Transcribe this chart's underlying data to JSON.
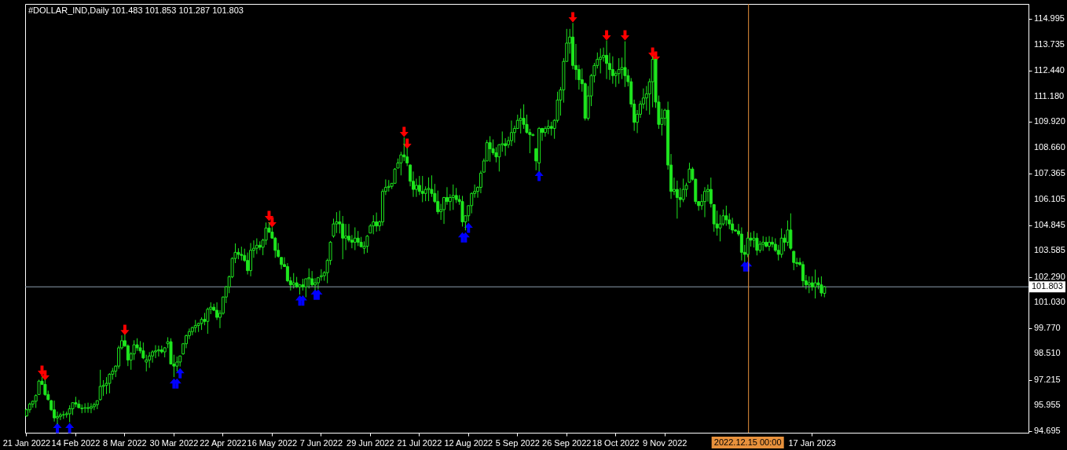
{
  "chart_data": {
    "type": "candlestick",
    "title": "#DOLLAR_IND,Daily  101.483 101.853 101.287 101.803",
    "color": "#1ee61e",
    "categories": [
      "21 Jan 2022",
      null,
      null,
      null,
      null,
      null,
      null,
      null,
      null,
      null,
      null,
      null,
      null,
      null,
      null,
      null,
      "14 Feb 2022",
      null,
      null,
      null,
      null,
      null,
      null,
      null,
      null,
      null,
      null,
      null,
      null,
      null,
      null,
      null,
      "8 Mar 2022",
      null,
      null,
      null,
      null,
      null,
      null,
      null,
      null,
      null,
      null,
      null,
      null,
      null,
      null,
      null,
      "30 Mar 2022",
      null,
      null,
      null,
      null,
      null,
      null,
      null,
      null,
      null,
      null,
      null,
      null,
      null,
      null,
      null,
      "22 Apr 2022",
      null,
      null,
      null,
      null,
      null,
      null,
      null,
      null,
      null,
      null,
      null,
      null,
      null,
      null,
      null,
      "16 May 2022",
      null,
      null,
      null,
      null,
      null,
      null,
      null,
      null,
      null,
      null,
      null,
      null,
      null,
      null,
      null,
      "7 Jun 2022",
      null,
      null,
      null,
      null,
      null,
      null,
      null,
      null,
      null,
      null,
      null,
      null,
      null,
      null,
      null,
      "29 Jun 2022",
      null,
      null,
      null,
      null,
      null,
      null,
      null,
      null,
      null,
      null,
      null,
      null,
      null,
      null,
      null,
      "21 Jul 2022",
      null,
      null,
      null,
      null,
      null,
      null,
      null,
      null,
      null,
      null,
      null,
      null,
      null,
      null,
      null,
      "12 Aug 2022",
      null,
      null,
      null,
      null,
      null,
      null,
      null,
      null,
      null,
      null,
      null,
      null,
      null,
      null,
      null,
      "5 Sep 2022",
      null,
      null,
      null,
      null,
      null,
      null,
      null,
      null,
      null,
      null,
      null,
      null,
      null,
      null,
      null,
      "26 Sep 2022",
      null,
      null,
      null,
      null,
      null,
      null,
      null,
      null,
      null,
      null,
      null,
      null,
      null,
      null,
      null,
      "18 Oct 2022",
      null,
      null,
      null,
      null,
      null,
      null,
      null,
      null,
      null,
      null,
      null,
      null,
      null,
      null,
      null,
      "9 Nov 2022",
      null,
      null,
      null,
      null,
      null,
      null,
      null,
      null,
      null,
      null,
      null,
      null,
      null,
      null,
      null,
      null,
      null,
      null,
      null,
      null,
      null,
      null,
      null,
      null,
      null,
      null,
      "2022.12.15 00:00",
      null,
      null,
      null,
      null,
      null,
      null,
      null,
      null,
      null,
      null,
      null,
      null,
      null,
      null,
      null,
      null,
      null,
      null,
      null,
      null,
      "17 Jan 2023",
      null,
      null,
      null,
      null,
      null,
      null,
      null,
      null,
      null,
      null,
      null,
      null,
      null,
      null,
      null,
      null,
      null,
      null,
      null,
      null,
      null,
      null,
      null,
      null,
      null,
      null,
      null,
      null,
      null,
      null,
      null,
      null,
      null,
      null,
      null,
      null,
      null,
      null,
      null,
      null,
      null,
      null,
      null,
      null,
      null,
      null,
      null,
      null,
      null,
      null,
      null,
      null,
      null,
      null,
      null,
      null,
      null,
      null,
      null,
      null,
      null,
      null,
      null,
      null,
      null,
      null,
      null,
      null,
      null,
      null
    ],
    "ohlc": [
      [
        95.45,
        95.81,
        95.4,
        95.75
      ],
      [
        95.75,
        96.1,
        95.6,
        96.03
      ],
      [
        96.03,
        96.2,
        95.85,
        96.17
      ],
      [
        96.17,
        96.51,
        95.84,
        96.45
      ],
      [
        96.5,
        97.23,
        96.48,
        97.16
      ],
      [
        97.16,
        97.36,
        96.97,
        97.0
      ],
      [
        97.0,
        97.23,
        96.43,
        96.5
      ],
      [
        96.5,
        96.69,
        96.2,
        96.25
      ],
      [
        96.2,
        96.24,
        95.69,
        95.75
      ],
      [
        95.75,
        96.2,
        95.17,
        95.35
      ],
      [
        95.35,
        95.66,
        95.04,
        95.42
      ],
      [
        95.42,
        95.6,
        95.24,
        95.5
      ],
      [
        95.5,
        95.69,
        95.3,
        95.51
      ],
      [
        95.51,
        95.66,
        95.36,
        95.55
      ],
      [
        95.55,
        95.97,
        95.14,
        95.8
      ],
      [
        95.8,
        96.1,
        95.49,
        96.1
      ],
      [
        96.1,
        96.39,
        95.88,
        96.03
      ],
      [
        96.03,
        96.23,
        95.84,
        95.85
      ],
      [
        95.8,
        96.01,
        95.58,
        95.83
      ],
      [
        95.83,
        96.07,
        95.6,
        95.85
      ],
      [
        95.85,
        96.1,
        95.6,
        95.82
      ],
      [
        95.82,
        96.07,
        95.58,
        95.9
      ],
      [
        95.9,
        96.1,
        95.73,
        96.0
      ],
      [
        96.0,
        96.2,
        95.78,
        96.2
      ],
      [
        96.25,
        97.72,
        96.2,
        96.9
      ],
      [
        96.9,
        97.21,
        96.43,
        96.95
      ],
      [
        96.95,
        97.36,
        96.52,
        97.05
      ],
      [
        97.05,
        97.55,
        96.56,
        97.5
      ],
      [
        97.5,
        97.81,
        97.23,
        97.65
      ],
      [
        97.65,
        97.94,
        97.36,
        97.9
      ],
      [
        97.9,
        98.91,
        97.77,
        98.8
      ],
      [
        98.8,
        99.42,
        98.71,
        99.15
      ],
      [
        99.15,
        99.46,
        98.84,
        98.9
      ],
      [
        98.9,
        98.97,
        97.9,
        98.2
      ],
      [
        98.2,
        98.59,
        97.72,
        98.5
      ],
      [
        98.5,
        99.17,
        98.2,
        98.95
      ],
      [
        98.95,
        99.27,
        98.65,
        98.8
      ],
      [
        98.8,
        99.13,
        98.52,
        98.65
      ],
      [
        98.65,
        99.06,
        98.24,
        98.3
      ],
      [
        98.1,
        98.46,
        97.64,
        98.2
      ],
      [
        98.2,
        98.59,
        97.81,
        98.4
      ],
      [
        98.4,
        98.68,
        98.07,
        98.6
      ],
      [
        98.6,
        98.93,
        98.29,
        98.65
      ],
      [
        98.65,
        98.91,
        98.37,
        98.7
      ],
      [
        98.7,
        98.91,
        98.52,
        98.6
      ],
      [
        98.6,
        98.84,
        98.33,
        98.8
      ],
      [
        99.0,
        99.32,
        98.78,
        99.1
      ],
      [
        99.1,
        99.27,
        98.0,
        98.0
      ],
      [
        98.0,
        98.46,
        97.36,
        97.9
      ],
      [
        97.9,
        98.37,
        97.64,
        98.1
      ],
      [
        98.1,
        98.42,
        97.88,
        98.4
      ],
      [
        98.5,
        99.04,
        98.46,
        99.0
      ],
      [
        99.0,
        99.45,
        98.78,
        99.4
      ],
      [
        99.4,
        99.75,
        99.23,
        99.6
      ],
      [
        99.6,
        99.84,
        99.42,
        99.8
      ],
      [
        99.8,
        100.17,
        99.55,
        99.9
      ],
      [
        99.9,
        100.04,
        99.58,
        100.0
      ],
      [
        100.0,
        100.3,
        99.68,
        100.2
      ],
      [
        100.2,
        100.52,
        99.91,
        100.1
      ],
      [
        100.1,
        100.78,
        99.49,
        100.7
      ],
      [
        100.7,
        101.04,
        100.46,
        100.8
      ],
      [
        100.8,
        100.97,
        100.61,
        100.65
      ],
      [
        100.65,
        101.04,
        100.17,
        100.3
      ],
      [
        100.3,
        100.65,
        99.77,
        100.5
      ],
      [
        100.5,
        101.33,
        100.43,
        101.3
      ],
      [
        101.3,
        101.85,
        101.0,
        101.8
      ],
      [
        101.8,
        102.36,
        101.49,
        102.3
      ],
      [
        102.3,
        103.26,
        102.23,
        103.2
      ],
      [
        103.2,
        103.94,
        102.97,
        103.5
      ],
      [
        103.5,
        103.7,
        103.16,
        103.4
      ],
      [
        103.4,
        103.78,
        103.1,
        103.35
      ],
      [
        103.35,
        103.68,
        103.03,
        103.1
      ],
      [
        103.1,
        103.49,
        102.41,
        102.6
      ],
      [
        102.6,
        103.96,
        102.32,
        103.6
      ],
      [
        103.6,
        104.09,
        103.23,
        103.7
      ],
      [
        103.7,
        104.19,
        103.42,
        103.85
      ],
      [
        103.85,
        104.04,
        103.61,
        103.75
      ],
      [
        103.75,
        104.17,
        103.36,
        104.1
      ],
      [
        104.1,
        104.97,
        103.87,
        104.7
      ],
      [
        104.7,
        104.97,
        104.45,
        104.5
      ],
      [
        104.5,
        104.74,
        104.17,
        104.2
      ],
      [
        104.2,
        104.26,
        103.23,
        103.6
      ],
      [
        103.6,
        103.96,
        103.23,
        103.3
      ],
      [
        103.25,
        103.26,
        102.67,
        102.9
      ],
      [
        102.9,
        103.26,
        102.78,
        102.8
      ],
      [
        102.8,
        102.97,
        102.03,
        102.1
      ],
      [
        102.1,
        102.29,
        101.62,
        101.9
      ],
      [
        101.9,
        102.48,
        101.72,
        102.0
      ],
      [
        102.0,
        102.29,
        101.75,
        101.8
      ],
      [
        101.8,
        101.94,
        101.42,
        101.9
      ],
      [
        101.9,
        102.2,
        101.62,
        101.8
      ],
      [
        101.8,
        102.2,
        101.29,
        102.2
      ],
      [
        102.2,
        102.71,
        101.72,
        102.25
      ],
      [
        102.2,
        102.58,
        101.81,
        101.9
      ],
      [
        101.9,
        102.23,
        101.64,
        102.0
      ],
      [
        102.0,
        102.29,
        101.68,
        102.25
      ],
      [
        102.3,
        102.67,
        102.1,
        102.35
      ],
      [
        102.35,
        102.58,
        102.1,
        102.5
      ],
      [
        102.5,
        103.19,
        101.98,
        103.1
      ],
      [
        103.1,
        104.06,
        102.88,
        104.0
      ],
      [
        104.3,
        105.16,
        104.22,
        104.9
      ],
      [
        104.9,
        105.48,
        104.45,
        105.0
      ],
      [
        105.0,
        105.55,
        104.43,
        104.9
      ],
      [
        104.9,
        105.29,
        103.16,
        104.2
      ],
      [
        104.2,
        104.9,
        103.61,
        104.3
      ],
      [
        104.3,
        104.9,
        104.0,
        104.1
      ],
      [
        104.1,
        104.35,
        103.7,
        104.0
      ],
      [
        104.0,
        104.73,
        103.61,
        104.2
      ],
      [
        104.2,
        104.55,
        103.81,
        104.0
      ],
      [
        104.0,
        104.26,
        103.74,
        103.78
      ],
      [
        103.7,
        104.04,
        103.42,
        103.8
      ],
      [
        103.8,
        104.35,
        103.48,
        104.3
      ],
      [
        104.45,
        104.9,
        104.45,
        104.8
      ],
      [
        104.8,
        105.33,
        104.39,
        105.0
      ],
      [
        105.0,
        105.46,
        104.52,
        104.8
      ],
      [
        104.8,
        105.07,
        104.55,
        105.0
      ],
      [
        105.0,
        106.62,
        104.81,
        106.5
      ],
      [
        106.5,
        107.09,
        106.32,
        106.7
      ],
      [
        106.7,
        107.06,
        106.49,
        106.75
      ],
      [
        106.75,
        106.9,
        106.62,
        106.9
      ],
      [
        106.9,
        107.65,
        106.9,
        107.6
      ],
      [
        107.65,
        108.12,
        107.65,
        107.9
      ],
      [
        107.9,
        108.45,
        107.29,
        108.3
      ],
      [
        108.3,
        109.16,
        107.99,
        108.2
      ],
      [
        108.2,
        108.64,
        107.74,
        107.9
      ],
      [
        107.8,
        107.83,
        106.75,
        107.0
      ],
      [
        107.0,
        107.48,
        106.23,
        106.6
      ],
      [
        106.6,
        107.13,
        106.23,
        106.8
      ],
      [
        106.8,
        107.26,
        106.32,
        106.5
      ],
      [
        106.5,
        107.26,
        105.97,
        106.4
      ],
      [
        106.4,
        106.75,
        106.02,
        106.6
      ],
      [
        106.6,
        107.19,
        106.02,
        106.65
      ],
      [
        106.6,
        107.29,
        106.23,
        106.4
      ],
      [
        106.4,
        106.87,
        105.93,
        106.0
      ],
      [
        106.0,
        106.54,
        105.38,
        105.5
      ],
      [
        105.5,
        105.89,
        105.1,
        105.6
      ],
      [
        105.6,
        106.23,
        104.9,
        106.2
      ],
      [
        106.2,
        106.71,
        105.84,
        106.0
      ],
      [
        106.0,
        106.36,
        105.55,
        106.2
      ],
      [
        106.2,
        106.84,
        105.59,
        106.3
      ],
      [
        106.3,
        106.67,
        105.93,
        106.1
      ],
      [
        106.1,
        106.32,
        105.84,
        106.0
      ],
      [
        106.0,
        106.28,
        104.77,
        105.0
      ],
      [
        105.0,
        105.33,
        104.58,
        105.3
      ],
      [
        105.3,
        105.81,
        105.03,
        105.8
      ],
      [
        105.8,
        106.45,
        105.42,
        106.4
      ],
      [
        106.4,
        106.84,
        106.19,
        106.5
      ],
      [
        106.5,
        106.75,
        106.19,
        106.7
      ],
      [
        106.7,
        107.52,
        106.41,
        107.4
      ],
      [
        107.45,
        108.12,
        107.42,
        108.0
      ],
      [
        108.0,
        109.03,
        107.99,
        108.9
      ],
      [
        108.9,
        109.22,
        107.96,
        108.6
      ],
      [
        108.6,
        109.06,
        108.29,
        108.4
      ],
      [
        108.4,
        108.68,
        107.93,
        108.2
      ],
      [
        108.2,
        108.83,
        107.48,
        108.8
      ],
      [
        108.8,
        109.45,
        108.45,
        108.85
      ],
      [
        108.85,
        109.12,
        108.25,
        108.75
      ],
      [
        108.8,
        109.2,
        108.64,
        109.0
      ],
      [
        109.0,
        109.99,
        108.73,
        109.4
      ],
      [
        109.4,
        109.74,
        108.9,
        109.6
      ],
      [
        109.6,
        110.28,
        109.58,
        110.0
      ],
      [
        110.0,
        110.57,
        109.35,
        110.1
      ],
      [
        110.1,
        110.79,
        109.58,
        109.8
      ],
      [
        109.8,
        110.28,
        109.35,
        109.4
      ],
      [
        109.4,
        109.58,
        108.38,
        109.3
      ],
      [
        109.25,
        109.35,
        109.22,
        109.3
      ],
      [
        108.6,
        108.64,
        107.54,
        108.0
      ],
      [
        107.9,
        109.67,
        107.48,
        109.6
      ],
      [
        109.6,
        109.63,
        108.99,
        109.4
      ],
      [
        109.4,
        109.71,
        109.19,
        109.6
      ],
      [
        109.6,
        110.02,
        109.32,
        109.7
      ],
      [
        109.7,
        109.93,
        109.25,
        109.6
      ],
      [
        109.6,
        110.06,
        109.09,
        110.0
      ],
      [
        110.0,
        111.41,
        109.89,
        111.0
      ],
      [
        111.0,
        111.64,
        110.23,
        111.5
      ],
      [
        111.5,
        113.06,
        110.87,
        112.9
      ],
      [
        112.9,
        114.5,
        112.89,
        113.8
      ],
      [
        113.8,
        114.5,
        113.28,
        114.1
      ],
      [
        114.1,
        114.79,
        112.51,
        112.7
      ],
      [
        112.7,
        113.76,
        111.99,
        112.5
      ],
      [
        112.5,
        112.73,
        111.51,
        112.0
      ],
      [
        112.0,
        112.55,
        111.41,
        111.8
      ],
      [
        111.8,
        111.86,
        109.99,
        110.1
      ],
      [
        110.1,
        111.69,
        109.99,
        111.2
      ],
      [
        111.2,
        112.29,
        110.7,
        112.2
      ],
      [
        112.2,
        112.83,
        111.86,
        112.7
      ],
      [
        112.7,
        113.34,
        112.55,
        113.0
      ],
      [
        113.0,
        113.54,
        112.31,
        113.1
      ],
      [
        113.1,
        113.58,
        112.89,
        113.2
      ],
      [
        113.2,
        113.93,
        112.03,
        112.8
      ],
      [
        112.8,
        113.32,
        111.99,
        112.5
      ],
      [
        112.5,
        113.15,
        111.8,
        112.2
      ],
      [
        112.2,
        112.42,
        111.64,
        112.3
      ],
      [
        112.3,
        113.06,
        111.8,
        112.5
      ],
      [
        112.5,
        113.09,
        112.03,
        112.6
      ],
      [
        112.6,
        113.89,
        111.64,
        112.2
      ],
      [
        112.2,
        112.51,
        111.67,
        111.9
      ],
      [
        111.9,
        112.08,
        110.64,
        110.8
      ],
      [
        110.8,
        111.02,
        109.48,
        109.9
      ],
      [
        109.9,
        110.51,
        109.37,
        110.3
      ],
      [
        110.3,
        110.96,
        110.12,
        110.8
      ],
      [
        110.8,
        111.57,
        110.57,
        111.1
      ],
      [
        111.1,
        111.69,
        110.48,
        111.3
      ],
      [
        111.3,
        112.06,
        110.28,
        111.9
      ],
      [
        111.9,
        113.15,
        110.64,
        113.0
      ],
      [
        113.0,
        113.02,
        110.61,
        110.9
      ],
      [
        110.9,
        111.22,
        109.58,
        109.8
      ],
      [
        109.8,
        110.57,
        109.25,
        110.1
      ],
      [
        110.1,
        110.57,
        109.74,
        110.5
      ],
      [
        110.5,
        110.92,
        107.57,
        107.8
      ],
      [
        107.8,
        108.34,
        106.13,
        106.5
      ],
      [
        106.5,
        107.18,
        106.32,
        106.6
      ],
      [
        106.6,
        107.03,
        105.16,
        106.2
      ],
      [
        106.2,
        106.67,
        105.71,
        106.1
      ],
      [
        106.1,
        107.13,
        105.97,
        106.6
      ],
      [
        106.6,
        106.93,
        106.23,
        106.8
      ],
      [
        106.95,
        107.91,
        106.93,
        107.6
      ],
      [
        107.6,
        107.7,
        107.03,
        107.1
      ],
      [
        107.1,
        107.13,
        105.87,
        106.0
      ],
      [
        106.0,
        106.02,
        105.55,
        105.8
      ],
      [
        105.8,
        106.36,
        105.59,
        106.0
      ],
      [
        106.0,
        106.71,
        105.23,
        106.5
      ],
      [
        106.5,
        106.84,
        106.0,
        106.6
      ],
      [
        106.6,
        107.18,
        105.71,
        105.9
      ],
      [
        105.85,
        105.87,
        104.51,
        104.9
      ],
      [
        104.9,
        105.55,
        104.32,
        104.7
      ],
      [
        104.7,
        105.35,
        104.04,
        104.9
      ],
      [
        104.9,
        105.61,
        104.81,
        105.3
      ],
      [
        105.3,
        105.8,
        104.81,
        105.1
      ],
      [
        105.1,
        105.42,
        104.64,
        104.9
      ],
      [
        104.9,
        105.2,
        104.43,
        104.6
      ],
      [
        104.6,
        104.64,
        104.51,
        104.55
      ],
      [
        104.55,
        104.9,
        104.3,
        104.4
      ],
      [
        104.4,
        104.73,
        103.1,
        103.5
      ],
      [
        103.5,
        103.87,
        103.03,
        103.4
      ],
      [
        103.4,
        104.51,
        103.26,
        104.2
      ],
      [
        104.2,
        104.48,
        103.78,
        104.1
      ],
      [
        104.1,
        104.55,
        103.74,
        104.2
      ],
      [
        104.2,
        104.45,
        103.35,
        103.6
      ],
      [
        103.6,
        104.06,
        103.48,
        103.9
      ],
      [
        103.9,
        104.3,
        103.57,
        104.0
      ],
      [
        104.0,
        104.26,
        103.74,
        103.8
      ],
      [
        103.8,
        104.3,
        103.57,
        104.0
      ],
      [
        104.0,
        104.26,
        103.74,
        103.9
      ],
      [
        103.9,
        104.19,
        103.52,
        103.6
      ],
      [
        103.6,
        103.87,
        103.1,
        103.4
      ],
      [
        103.4,
        104.68,
        103.23,
        104.2
      ],
      [
        104.2,
        104.39,
        103.55,
        104.0
      ],
      [
        104.0,
        105.07,
        103.81,
        104.6
      ],
      [
        104.6,
        105.42,
        103.61,
        103.7
      ],
      [
        103.55,
        103.58,
        102.62,
        103.0
      ],
      [
        103.0,
        103.23,
        102.78,
        102.95
      ],
      [
        103.0,
        103.23,
        102.84,
        102.9
      ],
      [
        102.9,
        103.06,
        101.81,
        102.1
      ],
      [
        102.1,
        102.39,
        101.68,
        101.9
      ],
      [
        101.9,
        102.32,
        101.49,
        102.0
      ],
      [
        102.0,
        102.32,
        101.61,
        101.8
      ],
      [
        101.8,
        102.65,
        101.23,
        102.0
      ],
      [
        102.0,
        102.26,
        101.68,
        101.9
      ],
      [
        101.9,
        102.32,
        101.33,
        101.5
      ],
      [
        101.483,
        101.853,
        101.287,
        101.803
      ],
      null,
      null,
      null,
      null,
      null,
      null,
      null,
      null,
      null,
      null,
      null,
      null,
      null,
      null,
      null,
      null,
      null,
      null,
      null,
      null,
      null,
      null,
      null,
      null,
      null,
      null,
      null,
      null,
      null,
      null,
      null,
      null,
      null,
      null,
      null,
      null,
      null,
      null,
      null,
      null,
      null,
      null,
      null,
      null,
      null,
      null,
      null,
      null,
      null,
      null,
      null,
      null,
      null,
      null,
      null,
      null,
      null,
      null,
      null,
      null,
      null,
      null,
      null,
      null,
      null,
      null
    ],
    "series": [
      {
        "type": "scatter",
        "color": "#ff0000",
        "values": [
          null,
          null,
          null,
          null,
          null,
          97.67,
          97.44,
          null,
          null,
          null,
          null,
          null,
          null,
          null,
          null,
          null,
          null,
          null,
          null,
          null,
          null,
          null,
          null,
          null,
          null,
          null,
          null,
          null,
          null,
          null,
          null,
          null,
          99.68,
          null,
          null,
          null,
          null,
          null,
          null,
          null,
          null,
          null,
          null,
          null,
          null,
          null,
          null,
          null,
          null,
          null,
          null,
          null,
          null,
          null,
          null,
          null,
          null,
          null,
          null,
          null,
          null,
          null,
          null,
          null,
          null,
          null,
          null,
          null,
          null,
          null,
          null,
          null,
          null,
          null,
          null,
          null,
          null,
          null,
          null,
          105.29,
          104.98,
          null,
          null,
          null,
          null,
          null,
          null,
          null,
          null,
          null,
          null,
          null,
          null,
          null,
          null,
          null,
          null,
          null,
          null,
          null,
          null,
          null,
          null,
          null,
          null,
          null,
          null,
          null,
          null,
          null,
          null,
          null,
          null,
          null,
          null,
          null,
          null,
          null,
          null,
          null,
          null,
          null,
          null,
          109.43,
          108.85,
          null,
          null,
          null,
          null,
          null,
          null,
          null,
          null,
          null,
          null,
          null,
          null,
          null,
          null,
          null,
          null,
          null,
          null,
          null,
          null,
          null,
          null,
          null,
          null,
          null,
          null,
          null,
          null,
          null,
          null,
          null,
          null,
          null,
          null,
          null,
          null,
          null,
          null,
          null,
          null,
          null,
          null,
          null,
          null,
          null,
          null,
          null,
          null,
          null,
          null,
          null,
          null,
          null,
          115.07,
          null,
          null,
          null,
          null,
          null,
          null,
          null,
          null,
          null,
          null,
          114.18,
          null,
          null,
          null,
          null,
          null,
          114.18,
          null,
          null,
          null,
          null,
          null,
          null,
          null,
          null,
          113.33,
          113.14,
          null,
          null,
          null,
          null,
          null,
          null,
          null,
          null,
          null,
          null,
          null,
          null,
          null,
          null,
          null,
          null,
          null,
          null,
          null,
          null,
          null,
          null,
          null,
          null,
          null,
          null,
          null,
          null,
          null,
          null,
          null,
          null,
          null,
          null,
          null,
          null,
          null,
          null,
          null,
          null,
          null,
          null,
          null,
          null,
          null,
          null,
          null,
          null,
          null,
          null,
          null,
          null,
          null,
          null,
          null,
          null,
          null,
          null,
          null,
          null,
          null,
          null,
          null,
          null,
          null,
          null,
          null,
          null,
          null,
          null,
          null,
          null,
          null,
          null,
          null,
          null,
          null,
          null,
          null,
          null,
          null,
          null,
          null,
          null,
          null,
          null,
          null,
          null,
          null,
          null,
          null,
          null,
          null,
          null,
          null,
          null,
          null,
          null,
          null,
          null,
          null,
          null,
          null,
          null,
          null,
          null,
          null,
          null,
          null,
          null,
          null,
          null,
          null,
          null,
          null,
          null,
          null,
          null,
          null,
          null,
          null
        ]
      },
      {
        "type": "scatter",
        "color": "#0000ff",
        "values": [
          null,
          null,
          null,
          null,
          null,
          null,
          null,
          null,
          null,
          null,
          94.85,
          null,
          null,
          null,
          94.85,
          null,
          null,
          null,
          null,
          null,
          null,
          null,
          null,
          null,
          null,
          null,
          null,
          null,
          null,
          null,
          null,
          null,
          null,
          null,
          null,
          null,
          null,
          null,
          null,
          null,
          null,
          null,
          null,
          null,
          null,
          null,
          null,
          null,
          97.05,
          97.05,
          97.55,
          null,
          null,
          null,
          null,
          null,
          null,
          null,
          null,
          null,
          null,
          null,
          null,
          null,
          null,
          null,
          null,
          null,
          null,
          null,
          null,
          null,
          null,
          null,
          null,
          null,
          null,
          null,
          null,
          null,
          null,
          null,
          null,
          null,
          null,
          null,
          null,
          null,
          null,
          101.13,
          101.13,
          null,
          null,
          null,
          101.42,
          101.42,
          null,
          null,
          null,
          null,
          null,
          null,
          null,
          null,
          null,
          null,
          null,
          null,
          null,
          null,
          null,
          null,
          null,
          null,
          null,
          null,
          null,
          null,
          null,
          null,
          null,
          null,
          null,
          null,
          null,
          null,
          null,
          null,
          null,
          null,
          null,
          null,
          null,
          null,
          null,
          null,
          null,
          null,
          null,
          null,
          null,
          null,
          104.24,
          104.24,
          104.71,
          null,
          null,
          null,
          null,
          null,
          null,
          null,
          null,
          null,
          null,
          null,
          null,
          null,
          null,
          null,
          null,
          null,
          null,
          null,
          null,
          null,
          null,
          107.26,
          null,
          null,
          null,
          null,
          null,
          null,
          null,
          null,
          null,
          null,
          null,
          null,
          null,
          null,
          null,
          null,
          null,
          null,
          null,
          null,
          null,
          null,
          null,
          null,
          null,
          null,
          null,
          null,
          null,
          null,
          null,
          null,
          null,
          null,
          null,
          null,
          null,
          null,
          null,
          null,
          null,
          null,
          null,
          null,
          null,
          null,
          null,
          null,
          null,
          null,
          null,
          null,
          null,
          null,
          null,
          null,
          null,
          null,
          null,
          null,
          null,
          null,
          null,
          null,
          null,
          null,
          102.81,
          102.81,
          null,
          null,
          null,
          null,
          null,
          null,
          null,
          null,
          null,
          null,
          null,
          null,
          null,
          null,
          null,
          null,
          null,
          null,
          null,
          null,
          null,
          null,
          null,
          null,
          null,
          null,
          null,
          null,
          null,
          null,
          null,
          null,
          null,
          null,
          null,
          null,
          null,
          null,
          null,
          null,
          null,
          null,
          null,
          null,
          null,
          null,
          null,
          null,
          null,
          null,
          null,
          null,
          null,
          null,
          null,
          null,
          null,
          null,
          null,
          null,
          null,
          null,
          null,
          null,
          null,
          null,
          null,
          null,
          null,
          null,
          null,
          null,
          null,
          null,
          null,
          null,
          null,
          null,
          null,
          null,
          null,
          null,
          null,
          null,
          null,
          null,
          null,
          null,
          null,
          null,
          null
        ]
      }
    ],
    "ylim": [
      94.62,
      115.73
    ],
    "yticks": [
      114.995,
      113.735,
      {
        "value": 112.44,
        "label": "112.440"
      },
      {
        "value": 111.18,
        "label": "111.180"
      },
      {
        "value": 109.92,
        "label": "109.920"
      },
      {
        "value": 108.66,
        "label": "108.660"
      },
      107.365,
      106.105,
      104.845,
      103.585,
      {
        "value": 102.29,
        "label": "102.290"
      },
      {
        "value": 101.03,
        "label": "101.030"
      },
      {
        "value": 99.77,
        "label": "99.770"
      },
      {
        "value": 98.51,
        "label": "98.510"
      },
      97.215,
      95.955,
      94.695
    ],
    "ref_lines": [
      {
        "axis": "y",
        "value": 101.803,
        "label": "101.803",
        "color": "#8c9cac"
      },
      {
        "axis": "x",
        "value": "2022.12.15 00:00",
        "color": "#e8913c"
      }
    ]
  }
}
